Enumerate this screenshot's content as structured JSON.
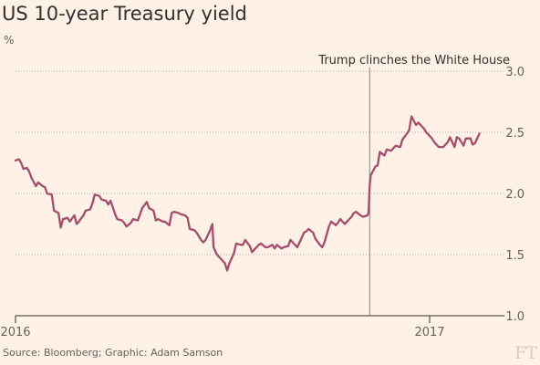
{
  "page": {
    "title": "US 10-year Treasury yield",
    "unit": "%",
    "source": "Source: Bloomberg; Graphic: Adam Samson",
    "logo": "FT"
  },
  "colors": {
    "background": "#fff1e5",
    "line": "#a64d6c",
    "grid": "#b8b0a8",
    "axis": "#33302e",
    "annotation_line": "#8a8580",
    "text": "#66605c"
  },
  "chart_data": {
    "type": "line",
    "title": "US 10-year Treasury yield",
    "ylabel": "%",
    "ylim": [
      1.0,
      3.0
    ],
    "y_ticks": [
      1.0,
      1.5,
      2.0,
      2.5,
      3.0
    ],
    "y_tick_labels": [
      "1.0",
      "1.5",
      "2.0",
      "2.5",
      "3.0"
    ],
    "y_axis_side": "right",
    "grid": "horizontal dotted",
    "xlim": [
      "2016-01-01",
      "2017-02-24"
    ],
    "x_ticks": [
      "2016-01-01",
      "2017-01-01"
    ],
    "x_tick_labels": [
      "2016",
      "2017"
    ],
    "annotation": {
      "text": "Trump clinches the White House",
      "date": "2016-11-09"
    },
    "series": [
      {
        "x": [
          "2016-01-01",
          "2016-01-04",
          "2016-01-06",
          "2016-01-08",
          "2016-01-11",
          "2016-01-13",
          "2016-01-15",
          "2016-01-19",
          "2016-01-21",
          "2016-01-25",
          "2016-01-27",
          "2016-01-29",
          "2016-02-02",
          "2016-02-04",
          "2016-02-08",
          "2016-02-10",
          "2016-02-12",
          "2016-02-16",
          "2016-02-18",
          "2016-02-22",
          "2016-02-24",
          "2016-02-26",
          "2016-03-01",
          "2016-03-03",
          "2016-03-07",
          "2016-03-09",
          "2016-03-11",
          "2016-03-15",
          "2016-03-17",
          "2016-03-21",
          "2016-03-23",
          "2016-03-25",
          "2016-03-29",
          "2016-03-31",
          "2016-04-04",
          "2016-04-06",
          "2016-04-08",
          "2016-04-12",
          "2016-04-14",
          "2016-04-18",
          "2016-04-20",
          "2016-04-22",
          "2016-04-26",
          "2016-04-28",
          "2016-05-02",
          "2016-05-04",
          "2016-05-06",
          "2016-05-10",
          "2016-05-12",
          "2016-05-16",
          "2016-05-18",
          "2016-05-20",
          "2016-05-24",
          "2016-05-26",
          "2016-05-30",
          "2016-06-01",
          "2016-06-03",
          "2016-06-07",
          "2016-06-09",
          "2016-06-13",
          "2016-06-15",
          "2016-06-17",
          "2016-06-21",
          "2016-06-23",
          "2016-06-24",
          "2016-06-27",
          "2016-06-30",
          "2016-07-04",
          "2016-07-06",
          "2016-07-08",
          "2016-07-12",
          "2016-07-14",
          "2016-07-18",
          "2016-07-20",
          "2016-07-22",
          "2016-07-26",
          "2016-07-28",
          "2016-08-01",
          "2016-08-03",
          "2016-08-05",
          "2016-08-09",
          "2016-08-11",
          "2016-08-15",
          "2016-08-17",
          "2016-08-19",
          "2016-08-23",
          "2016-08-25",
          "2016-08-29",
          "2016-08-31",
          "2016-09-02",
          "2016-09-06",
          "2016-09-08",
          "2016-09-12",
          "2016-09-14",
          "2016-09-16",
          "2016-09-20",
          "2016-09-22",
          "2016-09-26",
          "2016-09-28",
          "2016-09-30",
          "2016-10-04",
          "2016-10-06",
          "2016-10-10",
          "2016-10-12",
          "2016-10-14",
          "2016-10-18",
          "2016-10-20",
          "2016-10-24",
          "2016-10-26",
          "2016-10-28",
          "2016-11-01",
          "2016-11-03",
          "2016-11-07",
          "2016-11-08",
          "2016-11-09",
          "2016-11-10",
          "2016-11-14",
          "2016-11-16",
          "2016-11-18",
          "2016-11-22",
          "2016-11-24",
          "2016-11-28",
          "2016-11-30",
          "2016-12-02",
          "2016-12-06",
          "2016-12-08",
          "2016-12-12",
          "2016-12-14",
          "2016-12-15",
          "2016-12-16",
          "2016-12-20",
          "2016-12-22",
          "2016-12-27",
          "2016-12-29",
          "2017-01-03",
          "2017-01-05",
          "2017-01-09",
          "2017-01-11",
          "2017-01-13",
          "2017-01-17",
          "2017-01-19",
          "2017-01-23",
          "2017-01-25",
          "2017-01-27",
          "2017-01-31",
          "2017-02-02",
          "2017-02-06",
          "2017-02-08",
          "2017-02-10",
          "2017-02-14"
        ],
        "y": [
          2.27,
          2.28,
          2.25,
          2.2,
          2.21,
          2.18,
          2.13,
          2.06,
          2.09,
          2.06,
          2.05,
          2.0,
          1.99,
          1.86,
          1.84,
          1.72,
          1.79,
          1.8,
          1.77,
          1.82,
          1.75,
          1.77,
          1.82,
          1.86,
          1.87,
          1.92,
          1.99,
          1.98,
          1.95,
          1.94,
          1.91,
          1.94,
          1.83,
          1.79,
          1.78,
          1.76,
          1.73,
          1.76,
          1.79,
          1.78,
          1.83,
          1.88,
          1.93,
          1.88,
          1.86,
          1.78,
          1.79,
          1.77,
          1.77,
          1.74,
          1.84,
          1.85,
          1.84,
          1.83,
          1.82,
          1.8,
          1.71,
          1.7,
          1.68,
          1.62,
          1.6,
          1.62,
          1.7,
          1.75,
          1.56,
          1.5,
          1.47,
          1.43,
          1.37,
          1.43,
          1.51,
          1.59,
          1.58,
          1.58,
          1.62,
          1.57,
          1.52,
          1.56,
          1.58,
          1.59,
          1.56,
          1.56,
          1.58,
          1.55,
          1.58,
          1.55,
          1.56,
          1.57,
          1.62,
          1.6,
          1.56,
          1.6,
          1.68,
          1.69,
          1.71,
          1.68,
          1.63,
          1.58,
          1.56,
          1.6,
          1.73,
          1.77,
          1.74,
          1.76,
          1.79,
          1.75,
          1.77,
          1.81,
          1.84,
          1.85,
          1.82,
          1.81,
          1.82,
          1.84,
          2.07,
          2.15,
          2.22,
          2.23,
          2.34,
          2.31,
          2.36,
          2.35,
          2.37,
          2.39,
          2.38,
          2.44,
          2.49,
          2.52,
          2.58,
          2.63,
          2.56,
          2.58,
          2.53,
          2.5,
          2.45,
          2.42,
          2.38,
          2.38,
          2.38,
          2.42,
          2.46,
          2.38,
          2.46,
          2.45,
          2.39,
          2.45,
          2.45,
          2.4,
          2.41,
          2.49
        ]
      }
    ]
  }
}
